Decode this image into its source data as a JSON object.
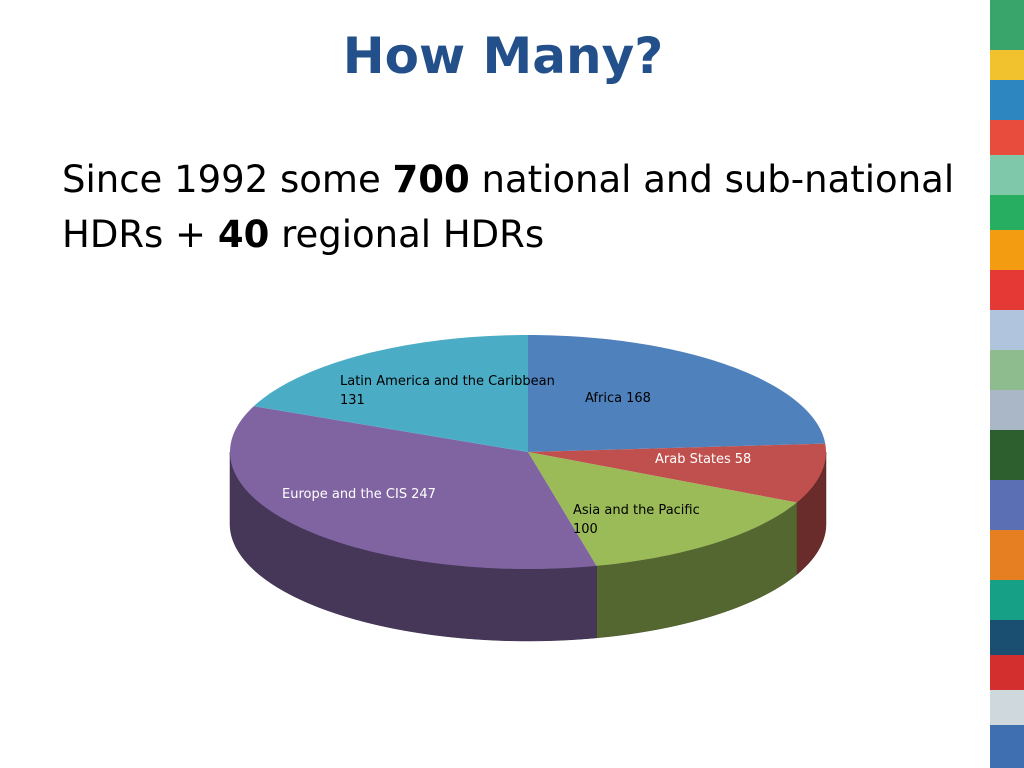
{
  "slide": {
    "title": "How Many?",
    "body": {
      "line1": [
        "Since 1992 some ",
        700,
        " national and sub-national"
      ],
      "line2": [
        "HDRs + ",
        40,
        " regional HDRs"
      ]
    }
  },
  "chart_data": {
    "type": "pie",
    "categories": [
      "Africa",
      "Arab States",
      "Asia and the Pacific",
      "Europe and the CIS",
      "Latin America and the Caribbean"
    ],
    "values": [
      168,
      58,
      100,
      247,
      131
    ],
    "colors": [
      "#4f81bd",
      "#c0504d",
      "#9bbb59",
      "#8064a2",
      "#4bacc6"
    ]
  }
}
